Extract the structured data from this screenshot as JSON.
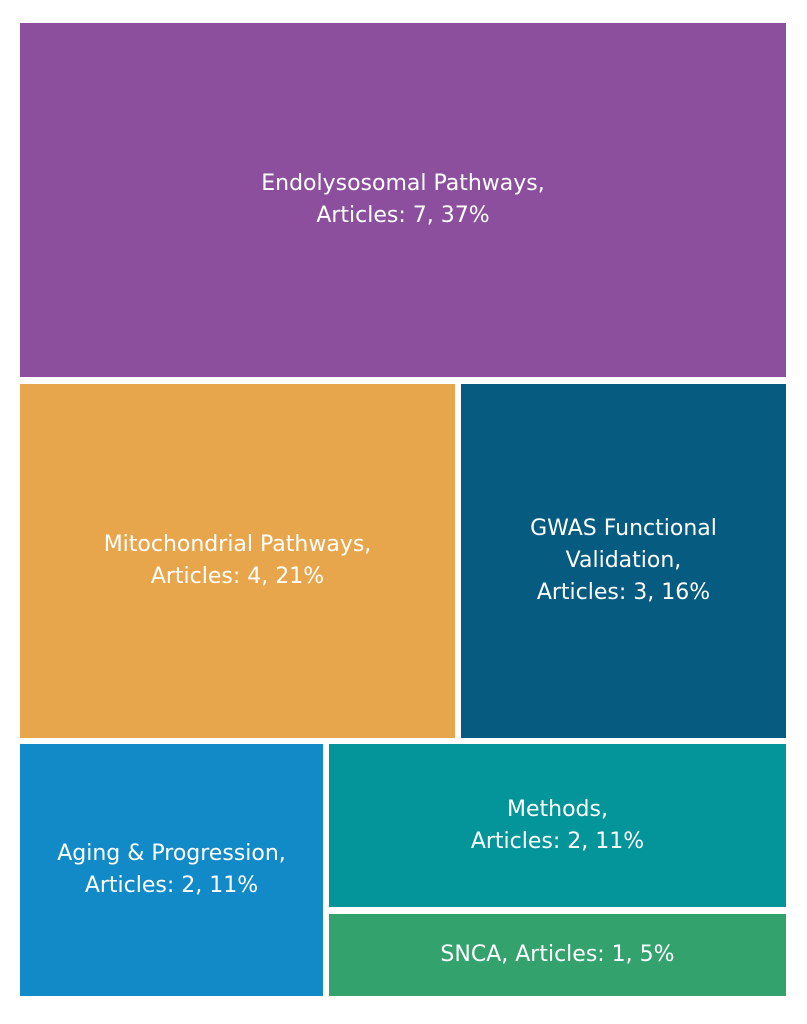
{
  "chart_data": {
    "type": "treemap",
    "title": "",
    "items": [
      {
        "category": "Endolysosomal Pathways",
        "label": "Endolysosomal Pathways,\nArticles: 7, 37%",
        "value": 7,
        "percent": 37,
        "color": "#8b4f9e"
      },
      {
        "category": "Mitochondrial Pathways",
        "label": "Mitochondrial Pathways,\nArticles: 4, 21%",
        "value": 4,
        "percent": 21,
        "color": "#e8a64c"
      },
      {
        "category": "GWAS Functional Validation",
        "label": "GWAS Functional\nValidation,\nArticles: 3, 16%",
        "value": 3,
        "percent": 16,
        "color": "#055b80"
      },
      {
        "category": "Aging & Progression",
        "label": "Aging & Progression,\nArticles: 2, 11%",
        "value": 2,
        "percent": 11,
        "color": "#118ac7"
      },
      {
        "category": "Methods",
        "label": "Methods,\nArticles: 2, 11%",
        "value": 2,
        "percent": 11,
        "color": "#03959a"
      },
      {
        "category": "SNCA",
        "label": "SNCA, Articles: 1, 5%",
        "value": 1,
        "percent": 5,
        "color": "#34a26d"
      }
    ]
  }
}
